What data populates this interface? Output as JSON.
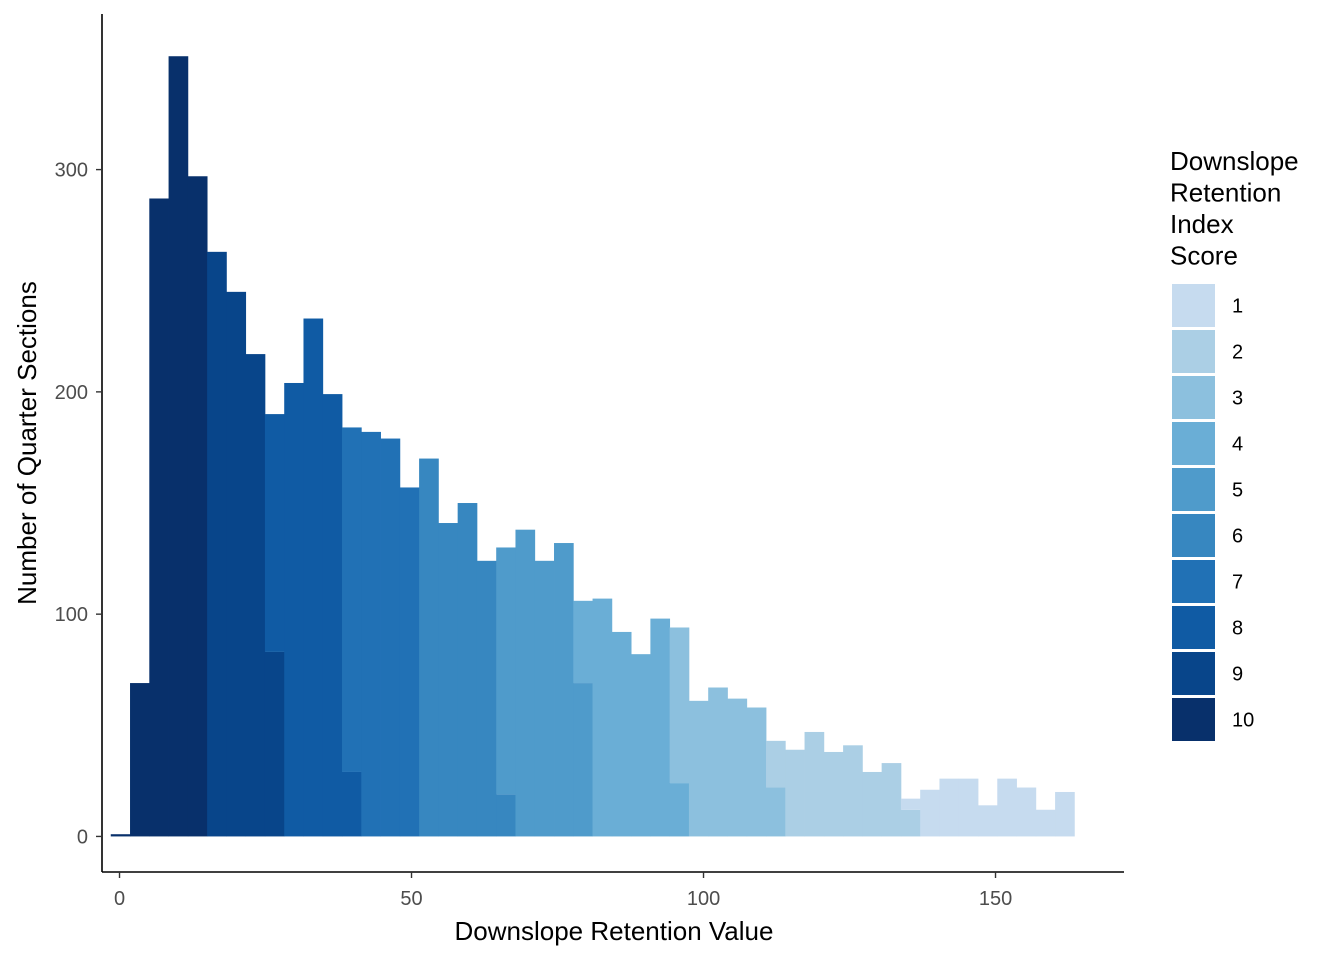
{
  "chart_data": {
    "type": "bar",
    "xlabel": "Downslope Retention Value",
    "ylabel": "Number of Quarter Sections",
    "xlim": [
      -3,
      172
    ],
    "ylim": [
      -16,
      370
    ],
    "x_ticks": [
      0,
      50,
      100,
      150
    ],
    "y_ticks": [
      0,
      100,
      200,
      300
    ],
    "grid": false,
    "legend": {
      "title_lines": [
        "Downslope",
        "Retention",
        "Index",
        "Score"
      ],
      "position": "right",
      "entries": [
        {
          "label": "1",
          "color": "#c6dbef"
        },
        {
          "label": "2",
          "color": "#abcfe5"
        },
        {
          "label": "3",
          "color": "#8cc0de"
        },
        {
          "label": "4",
          "color": "#6aaed6"
        },
        {
          "label": "5",
          "color": "#4f9bcb"
        },
        {
          "label": "6",
          "color": "#3787c0"
        },
        {
          "label": "7",
          "color": "#2171b5"
        },
        {
          "label": "8",
          "color": "#105ba4"
        },
        {
          "label": "9",
          "color": "#08458a"
        },
        {
          "label": "10",
          "color": "#08306b"
        }
      ]
    },
    "bins": [
      {
        "x0": -1.5,
        "x1": 1.8,
        "segments": [
          {
            "score": "10",
            "count": 1
          }
        ]
      },
      {
        "x0": 1.8,
        "x1": 5.1,
        "segments": [
          {
            "score": "10",
            "count": 69
          }
        ]
      },
      {
        "x0": 5.1,
        "x1": 8.4,
        "segments": [
          {
            "score": "10",
            "count": 287
          }
        ]
      },
      {
        "x0": 8.4,
        "x1": 11.7,
        "segments": [
          {
            "score": "10",
            "count": 351
          }
        ]
      },
      {
        "x0": 11.7,
        "x1": 15.0,
        "segments": [
          {
            "score": "10",
            "count": 297
          }
        ]
      },
      {
        "x0": 15.0,
        "x1": 18.3,
        "segments": [
          {
            "score": "9",
            "count": 263
          }
        ]
      },
      {
        "x0": 18.3,
        "x1": 21.6,
        "segments": [
          {
            "score": "9",
            "count": 245
          }
        ]
      },
      {
        "x0": 21.6,
        "x1": 24.9,
        "segments": [
          {
            "score": "9",
            "count": 217
          }
        ]
      },
      {
        "x0": 24.9,
        "x1": 28.2,
        "segments": [
          {
            "score": "9",
            "count": 83
          },
          {
            "score": "8",
            "count": 107
          }
        ]
      },
      {
        "x0": 28.2,
        "x1": 31.5,
        "segments": [
          {
            "score": "8",
            "count": 204
          }
        ]
      },
      {
        "x0": 31.5,
        "x1": 34.8,
        "segments": [
          {
            "score": "8",
            "count": 233
          }
        ]
      },
      {
        "x0": 34.8,
        "x1": 38.1,
        "segments": [
          {
            "score": "8",
            "count": 199
          }
        ]
      },
      {
        "x0": 38.1,
        "x1": 41.4,
        "segments": [
          {
            "score": "8",
            "count": 29
          },
          {
            "score": "7",
            "count": 155
          }
        ]
      },
      {
        "x0": 41.4,
        "x1": 44.7,
        "segments": [
          {
            "score": "7",
            "count": 182
          }
        ]
      },
      {
        "x0": 44.7,
        "x1": 48.0,
        "segments": [
          {
            "score": "7",
            "count": 179
          }
        ]
      },
      {
        "x0": 48.0,
        "x1": 51.3,
        "segments": [
          {
            "score": "7",
            "count": 157
          }
        ]
      },
      {
        "x0": 51.3,
        "x1": 54.6,
        "segments": [
          {
            "score": "6",
            "count": 170
          }
        ]
      },
      {
        "x0": 54.6,
        "x1": 57.9,
        "segments": [
          {
            "score": "6",
            "count": 141
          }
        ]
      },
      {
        "x0": 57.9,
        "x1": 61.2,
        "segments": [
          {
            "score": "6",
            "count": 150
          }
        ]
      },
      {
        "x0": 61.2,
        "x1": 64.5,
        "segments": [
          {
            "score": "6",
            "count": 124
          }
        ]
      },
      {
        "x0": 64.5,
        "x1": 67.8,
        "segments": [
          {
            "score": "6",
            "count": 19
          },
          {
            "score": "5",
            "count": 111
          }
        ]
      },
      {
        "x0": 67.8,
        "x1": 71.1,
        "segments": [
          {
            "score": "5",
            "count": 138
          }
        ]
      },
      {
        "x0": 71.1,
        "x1": 74.4,
        "segments": [
          {
            "score": "5",
            "count": 124
          }
        ]
      },
      {
        "x0": 74.4,
        "x1": 77.7,
        "segments": [
          {
            "score": "5",
            "count": 132
          }
        ]
      },
      {
        "x0": 77.7,
        "x1": 81.0,
        "segments": [
          {
            "score": "5",
            "count": 69
          },
          {
            "score": "4",
            "count": 37
          }
        ]
      },
      {
        "x0": 81.0,
        "x1": 84.3,
        "segments": [
          {
            "score": "4",
            "count": 107
          }
        ]
      },
      {
        "x0": 84.3,
        "x1": 87.6,
        "segments": [
          {
            "score": "4",
            "count": 92
          }
        ]
      },
      {
        "x0": 87.6,
        "x1": 90.9,
        "segments": [
          {
            "score": "4",
            "count": 82
          }
        ]
      },
      {
        "x0": 90.9,
        "x1": 94.2,
        "segments": [
          {
            "score": "4",
            "count": 98
          }
        ]
      },
      {
        "x0": 94.2,
        "x1": 97.5,
        "segments": [
          {
            "score": "4",
            "count": 24
          },
          {
            "score": "3",
            "count": 70
          }
        ]
      },
      {
        "x0": 97.5,
        "x1": 100.8,
        "segments": [
          {
            "score": "3",
            "count": 61
          }
        ]
      },
      {
        "x0": 100.8,
        "x1": 104.1,
        "segments": [
          {
            "score": "3",
            "count": 67
          }
        ]
      },
      {
        "x0": 104.1,
        "x1": 107.4,
        "segments": [
          {
            "score": "3",
            "count": 62
          }
        ]
      },
      {
        "x0": 107.4,
        "x1": 110.7,
        "segments": [
          {
            "score": "3",
            "count": 58
          }
        ]
      },
      {
        "x0": 110.7,
        "x1": 114.0,
        "segments": [
          {
            "score": "3",
            "count": 22
          },
          {
            "score": "2",
            "count": 21
          }
        ]
      },
      {
        "x0": 114.0,
        "x1": 117.3,
        "segments": [
          {
            "score": "2",
            "count": 39
          }
        ]
      },
      {
        "x0": 117.3,
        "x1": 120.6,
        "segments": [
          {
            "score": "2",
            "count": 47
          }
        ]
      },
      {
        "x0": 120.6,
        "x1": 123.9,
        "segments": [
          {
            "score": "2",
            "count": 38
          }
        ]
      },
      {
        "x0": 123.9,
        "x1": 127.2,
        "segments": [
          {
            "score": "2",
            "count": 41
          }
        ]
      },
      {
        "x0": 127.2,
        "x1": 130.5,
        "segments": [
          {
            "score": "2",
            "count": 29
          }
        ]
      },
      {
        "x0": 130.5,
        "x1": 133.8,
        "segments": [
          {
            "score": "2",
            "count": 33
          }
        ]
      },
      {
        "x0": 133.8,
        "x1": 137.1,
        "segments": [
          {
            "score": "2",
            "count": 12
          },
          {
            "score": "1",
            "count": 5
          }
        ]
      },
      {
        "x0": 137.1,
        "x1": 140.4,
        "segments": [
          {
            "score": "1",
            "count": 21
          }
        ]
      },
      {
        "x0": 140.4,
        "x1": 143.7,
        "segments": [
          {
            "score": "1",
            "count": 26
          }
        ]
      },
      {
        "x0": 143.7,
        "x1": 147.0,
        "segments": [
          {
            "score": "1",
            "count": 26
          }
        ]
      },
      {
        "x0": 147.0,
        "x1": 150.3,
        "segments": [
          {
            "score": "1",
            "count": 14
          }
        ]
      },
      {
        "x0": 150.3,
        "x1": 153.6,
        "segments": [
          {
            "score": "1",
            "count": 26
          }
        ]
      },
      {
        "x0": 153.6,
        "x1": 156.9,
        "segments": [
          {
            "score": "1",
            "count": 22
          }
        ]
      },
      {
        "x0": 156.9,
        "x1": 160.2,
        "segments": [
          {
            "score": "1",
            "count": 12
          }
        ]
      },
      {
        "x0": 160.2,
        "x1": 163.5,
        "segments": [
          {
            "score": "1",
            "count": 20
          }
        ]
      }
    ]
  }
}
